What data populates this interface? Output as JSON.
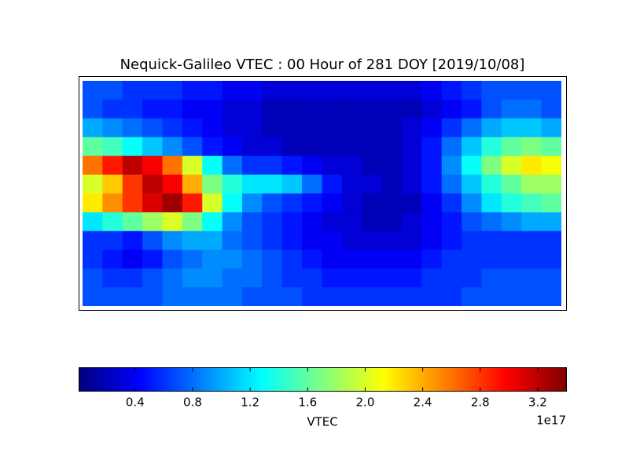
{
  "chart_data": {
    "type": "heatmap",
    "title": "Nequick-Galileo VTEC : 00 Hour of 281 DOY [2019/10/08]",
    "xlim": [
      -180,
      180
    ],
    "ylim": [
      90,
      -90
    ],
    "z": [
      [
        0.7,
        0.7,
        0.6,
        0.6,
        0.6,
        0.5,
        0.5,
        0.4,
        0.4,
        0.3,
        0.3,
        0.3,
        0.3,
        0.3,
        0.3,
        0.3,
        0.3,
        0.4,
        0.5,
        0.6,
        0.7,
        0.7,
        0.7,
        0.7
      ],
      [
        0.7,
        0.6,
        0.6,
        0.5,
        0.5,
        0.4,
        0.4,
        0.3,
        0.3,
        0.2,
        0.2,
        0.2,
        0.2,
        0.2,
        0.2,
        0.2,
        0.2,
        0.3,
        0.4,
        0.5,
        0.7,
        0.8,
        0.8,
        0.7
      ],
      [
        1.0,
        0.9,
        0.8,
        0.7,
        0.6,
        0.5,
        0.4,
        0.3,
        0.3,
        0.2,
        0.2,
        0.2,
        0.2,
        0.2,
        0.2,
        0.2,
        0.3,
        0.4,
        0.6,
        0.8,
        1.0,
        1.1,
        1.1,
        1.0
      ],
      [
        1.6,
        1.5,
        1.3,
        1.1,
        0.9,
        0.7,
        0.5,
        0.4,
        0.3,
        0.3,
        0.2,
        0.2,
        0.2,
        0.2,
        0.2,
        0.2,
        0.3,
        0.5,
        0.8,
        1.1,
        1.4,
        1.6,
        1.7,
        1.6
      ],
      [
        2.6,
        2.9,
        3.2,
        3.0,
        2.6,
        2.0,
        1.3,
        0.8,
        0.6,
        0.6,
        0.5,
        0.4,
        0.3,
        0.3,
        0.2,
        0.2,
        0.3,
        0.5,
        0.9,
        1.3,
        1.7,
        2.0,
        2.2,
        2.1
      ],
      [
        2.0,
        2.3,
        2.8,
        3.2,
        3.0,
        2.4,
        1.7,
        1.4,
        1.2,
        1.2,
        1.1,
        0.8,
        0.5,
        0.3,
        0.3,
        0.2,
        0.3,
        0.5,
        0.8,
        1.1,
        1.4,
        1.6,
        1.8,
        1.8
      ],
      [
        2.2,
        2.5,
        2.8,
        3.1,
        3.3,
        2.9,
        2.0,
        1.3,
        0.9,
        0.7,
        0.6,
        0.5,
        0.4,
        0.3,
        0.2,
        0.2,
        0.2,
        0.4,
        0.6,
        0.9,
        1.2,
        1.4,
        1.5,
        1.6
      ],
      [
        1.2,
        1.4,
        1.6,
        1.8,
        2.0,
        1.7,
        1.3,
        0.9,
        0.7,
        0.6,
        0.5,
        0.4,
        0.3,
        0.3,
        0.2,
        0.2,
        0.3,
        0.4,
        0.5,
        0.7,
        0.8,
        0.9,
        1.0,
        1.0
      ],
      [
        0.6,
        0.6,
        0.5,
        0.7,
        0.9,
        1.0,
        1.0,
        0.8,
        0.7,
        0.6,
        0.5,
        0.4,
        0.4,
        0.3,
        0.3,
        0.3,
        0.3,
        0.4,
        0.5,
        0.6,
        0.6,
        0.6,
        0.6,
        0.6
      ],
      [
        0.6,
        0.5,
        0.4,
        0.5,
        0.7,
        0.8,
        0.9,
        0.9,
        0.8,
        0.7,
        0.6,
        0.5,
        0.4,
        0.4,
        0.4,
        0.4,
        0.4,
        0.5,
        0.6,
        0.6,
        0.6,
        0.6,
        0.6,
        0.6
      ],
      [
        0.7,
        0.6,
        0.6,
        0.7,
        0.8,
        0.9,
        0.9,
        0.8,
        0.8,
        0.7,
        0.6,
        0.6,
        0.5,
        0.5,
        0.5,
        0.5,
        0.5,
        0.6,
        0.6,
        0.6,
        0.7,
        0.7,
        0.7,
        0.7
      ],
      [
        0.7,
        0.7,
        0.7,
        0.7,
        0.8,
        0.8,
        0.8,
        0.8,
        0.7,
        0.7,
        0.7,
        0.6,
        0.6,
        0.6,
        0.6,
        0.6,
        0.6,
        0.6,
        0.6,
        0.7,
        0.7,
        0.7,
        0.7,
        0.7
      ]
    ],
    "colormap": "jet",
    "clim": [
      0.01,
      3.4
    ],
    "colorbar_ticks": [
      0.4,
      0.8,
      1.2,
      1.6,
      {
        "value": 2,
        "label": "2.0"
      },
      2.4,
      2.8,
      3.2
    ],
    "colorbar_label": "VTEC",
    "colorbar_offset": "1e17"
  }
}
